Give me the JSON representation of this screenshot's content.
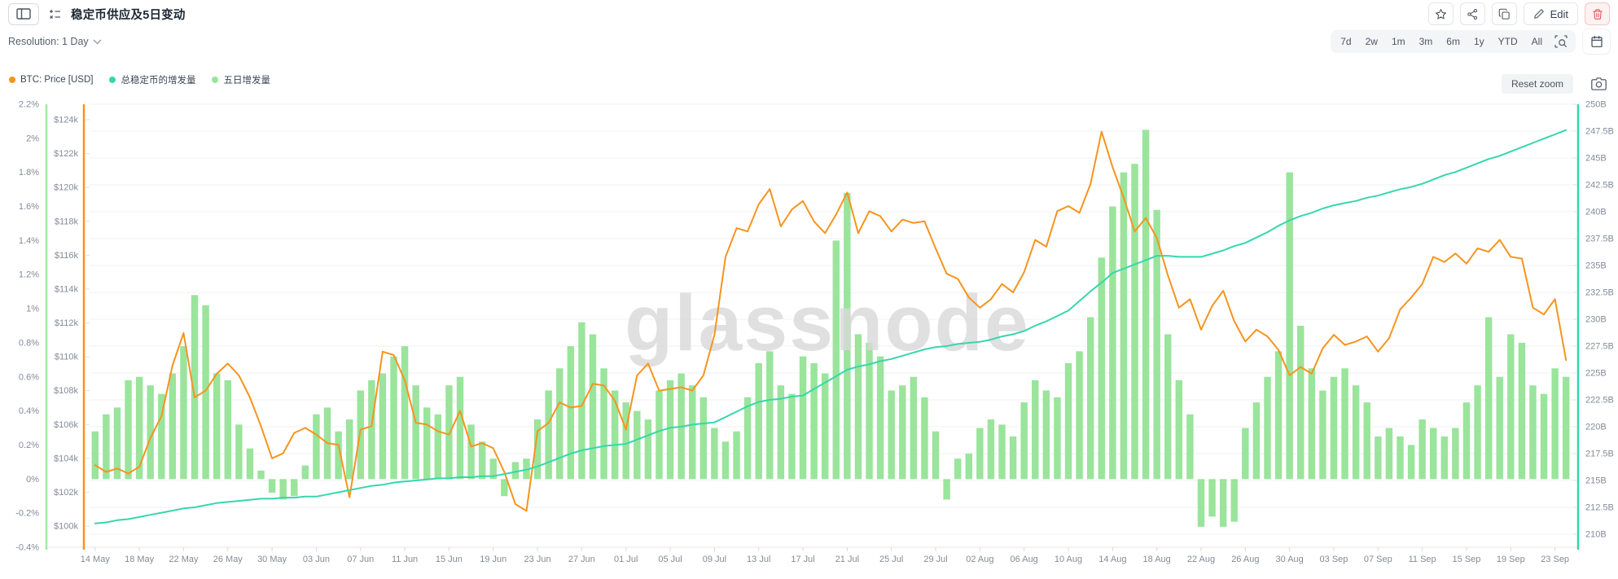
{
  "header": {
    "title": "稳定币供应及5日变动",
    "edit_label": "Edit"
  },
  "toolbar": {
    "resolution_label": "Resolution: 1 Day",
    "ranges": [
      "7d",
      "2w",
      "1m",
      "3m",
      "6m",
      "1y",
      "YTD",
      "All"
    ]
  },
  "chart_controls": {
    "reset_zoom_label": "Reset zoom"
  },
  "watermark": "glassnode",
  "colors": {
    "btc_line": "#f7941e",
    "supply_line": "#36d7ac",
    "bars": "#9ae49c",
    "pct_axis": "#a5e8a7",
    "grid": "#f2f2f4",
    "axis_text": "#848b98",
    "danger": "#e05252"
  },
  "chart_data": {
    "type": "mixed",
    "title": "稳定币供应及5日变动",
    "watermark": "glassnode",
    "legend_position": "top-left",
    "grid": "horizontal",
    "x_ticks": {
      "indices": [
        0,
        4,
        8,
        12,
        16,
        20,
        24,
        28,
        32,
        36,
        40,
        44,
        48,
        52,
        56,
        60,
        64,
        68,
        72,
        76,
        80,
        84,
        88,
        92,
        96,
        100,
        104,
        108,
        112,
        116,
        120,
        124,
        128,
        132
      ],
      "labels": [
        "14 May",
        "18 May",
        "22 May",
        "26 May",
        "30 May",
        "03 Jun",
        "07 Jun",
        "11 Jun",
        "15 Jun",
        "19 Jun",
        "23 Jun",
        "27 Jun",
        "01 Jul",
        "05 Jul",
        "09 Jul",
        "13 Jul",
        "17 Jul",
        "21 Jul",
        "25 Jul",
        "29 Jul",
        "02 Aug",
        "06 Aug",
        "10 Aug",
        "14 Aug",
        "18 Aug",
        "22 Aug",
        "26 Aug",
        "30 Aug",
        "03 Sep",
        "07 Sep",
        "11 Sep",
        "15 Sep",
        "19 Sep",
        "23 Sep"
      ]
    },
    "axes": {
      "pct": {
        "side": "outer-left",
        "min": -0.4,
        "max": 2.2,
        "tick_values": [
          -0.4,
          -0.2,
          0,
          0.2,
          0.4,
          0.6,
          0.8,
          1,
          1.2,
          1.4,
          1.6,
          1.8,
          2,
          2.2
        ],
        "tick_labels": [
          "-0.4%",
          "-0.2%",
          "0%",
          "0.2%",
          "0.4%",
          "0.6%",
          "0.8%",
          "1%",
          "1.2%",
          "1.4%",
          "1.6%",
          "1.8%",
          "2%",
          "2.2%"
        ]
      },
      "usd": {
        "side": "inner-left",
        "min": 100,
        "max": 124,
        "tick_values": [
          100,
          102,
          104,
          106,
          108,
          110,
          112,
          114,
          116,
          118,
          120,
          122,
          124
        ],
        "tick_labels": [
          "$100k",
          "$102k",
          "$104k",
          "$106k",
          "$108k",
          "$110k",
          "$112k",
          "$114k",
          "$116k",
          "$118k",
          "$120k",
          "$122k",
          "$124k"
        ]
      },
      "sup": {
        "side": "right",
        "min": 210,
        "max": 250,
        "tick_values": [
          210,
          212.5,
          215,
          217.5,
          220,
          222.5,
          225,
          227.5,
          230,
          232.5,
          235,
          237.5,
          240,
          242.5,
          245,
          247.5,
          250
        ],
        "tick_labels": [
          "210B",
          "212.5B",
          "215B",
          "217.5B",
          "220B",
          "222.5B",
          "225B",
          "227.5B",
          "230B",
          "232.5B",
          "235B",
          "237.5B",
          "240B",
          "242.5B",
          "245B",
          "247.5B",
          "250B"
        ]
      }
    },
    "series": [
      {
        "name": "BTC: Price [USD]",
        "type": "line",
        "axis": "usd",
        "color": "#f7941e",
        "unit": "k USD",
        "values": [
          103.6,
          103.2,
          103.4,
          103.1,
          103.5,
          105.2,
          106.5,
          109.5,
          111.4,
          107.6,
          108.0,
          109.0,
          109.6,
          108.9,
          107.6,
          105.9,
          104.0,
          104.3,
          105.5,
          105.8,
          105.4,
          104.9,
          104.8,
          101.7,
          105.7,
          105.9,
          110.3,
          110.1,
          108.6,
          106.1,
          106.0,
          105.6,
          105.4,
          106.8,
          104.7,
          104.9,
          104.6,
          103.2,
          101.3,
          100.9,
          105.6,
          106.1,
          107.3,
          107.0,
          107.1,
          108.4,
          108.3,
          107.4,
          105.7,
          108.9,
          109.6,
          108.0,
          108.1,
          108.2,
          108.0,
          108.9,
          111.3,
          115.9,
          117.6,
          117.4,
          119.0,
          119.9,
          117.7,
          118.7,
          119.2,
          118.0,
          117.3,
          118.4,
          119.7,
          117.3,
          118.6,
          118.3,
          117.4,
          118.1,
          117.9,
          118.0,
          116.4,
          114.9,
          114.6,
          113.5,
          112.9,
          113.4,
          114.3,
          113.8,
          115.0,
          116.9,
          116.5,
          118.6,
          118.9,
          118.5,
          120.2,
          123.3,
          121.2,
          119.4,
          117.4,
          118.2,
          117.0,
          114.8,
          112.9,
          113.4,
          111.6,
          113.0,
          113.9,
          112.1,
          110.9,
          111.6,
          111.2,
          110.4,
          108.9,
          109.4,
          109.0,
          110.5,
          111.3,
          110.7,
          110.9,
          111.2,
          110.3,
          111.1,
          112.8,
          113.5,
          114.3,
          115.9,
          115.6,
          116.1,
          115.5,
          116.4,
          116.2,
          116.9,
          115.9,
          115.8,
          112.9,
          112.5,
          113.4,
          109.8
        ]
      },
      {
        "name": "总稳定币的增发量",
        "type": "line",
        "axis": "sup",
        "color": "#36d7ac",
        "unit": "B USD",
        "values": [
          211.0,
          211.1,
          211.3,
          211.4,
          211.6,
          211.8,
          212.0,
          212.2,
          212.4,
          212.5,
          212.7,
          212.9,
          213.0,
          213.1,
          213.2,
          213.3,
          213.3,
          213.4,
          213.4,
          213.5,
          213.5,
          213.7,
          213.9,
          214.1,
          214.3,
          214.5,
          214.6,
          214.8,
          214.9,
          215.0,
          215.1,
          215.2,
          215.2,
          215.3,
          215.3,
          215.4,
          215.4,
          215.6,
          215.8,
          216.0,
          216.3,
          216.7,
          217.1,
          217.5,
          217.8,
          218.0,
          218.2,
          218.3,
          218.4,
          218.8,
          219.2,
          219.6,
          219.9,
          220.0,
          220.2,
          220.3,
          220.4,
          220.9,
          221.4,
          221.9,
          222.3,
          222.5,
          222.6,
          222.8,
          222.9,
          223.5,
          224.1,
          224.7,
          225.3,
          225.6,
          225.8,
          226.1,
          226.3,
          226.6,
          226.9,
          227.2,
          227.4,
          227.5,
          227.7,
          227.8,
          227.9,
          228.1,
          228.4,
          228.6,
          228.9,
          229.4,
          229.8,
          230.3,
          230.8,
          231.7,
          232.6,
          233.4,
          234.3,
          234.7,
          235.1,
          235.5,
          235.9,
          235.9,
          235.8,
          235.8,
          235.8,
          236.1,
          236.4,
          236.8,
          237.1,
          237.6,
          238.1,
          238.7,
          239.2,
          239.6,
          239.9,
          240.3,
          240.6,
          240.8,
          241.0,
          241.3,
          241.5,
          241.8,
          242.1,
          242.3,
          242.6,
          243.0,
          243.4,
          243.7,
          244.1,
          244.5,
          244.9,
          245.2,
          245.6,
          246.0,
          246.4,
          246.8,
          247.2,
          247.6
        ]
      },
      {
        "name": "五日增发量",
        "type": "bar",
        "axis": "pct",
        "color": "#9ae49c",
        "unit": "%",
        "values": [
          0.28,
          0.38,
          0.42,
          0.58,
          0.6,
          0.55,
          0.5,
          0.62,
          0.78,
          1.08,
          1.02,
          0.62,
          0.58,
          0.32,
          0.18,
          0.05,
          -0.08,
          -0.12,
          -0.1,
          0.08,
          0.38,
          0.42,
          0.28,
          0.35,
          0.52,
          0.58,
          0.62,
          0.72,
          0.78,
          0.55,
          0.42,
          0.38,
          0.55,
          0.6,
          0.32,
          0.22,
          0.12,
          -0.1,
          0.1,
          0.12,
          0.35,
          0.52,
          0.65,
          0.78,
          0.92,
          0.85,
          0.65,
          0.52,
          0.45,
          0.4,
          0.35,
          0.52,
          0.58,
          0.62,
          0.55,
          0.48,
          0.3,
          0.22,
          0.28,
          0.48,
          0.68,
          0.75,
          0.55,
          0.5,
          0.72,
          0.68,
          0.62,
          1.4,
          1.68,
          0.85,
          0.8,
          0.72,
          0.52,
          0.55,
          0.6,
          0.48,
          0.28,
          -0.12,
          0.12,
          0.15,
          0.3,
          0.35,
          0.32,
          0.25,
          0.45,
          0.58,
          0.52,
          0.48,
          0.68,
          0.75,
          0.95,
          1.3,
          1.6,
          1.8,
          1.85,
          2.05,
          1.58,
          0.85,
          0.58,
          0.38,
          -0.28,
          -0.22,
          -0.28,
          -0.25,
          0.3,
          0.45,
          0.6,
          0.75,
          1.8,
          0.9,
          0.65,
          0.52,
          0.6,
          0.65,
          0.55,
          0.45,
          0.25,
          0.3,
          0.25,
          0.2,
          0.35,
          0.3,
          0.25,
          0.3,
          0.45,
          0.55,
          0.95,
          0.6,
          0.85,
          0.8,
          0.55,
          0.5,
          0.65,
          0.6
        ]
      }
    ]
  }
}
